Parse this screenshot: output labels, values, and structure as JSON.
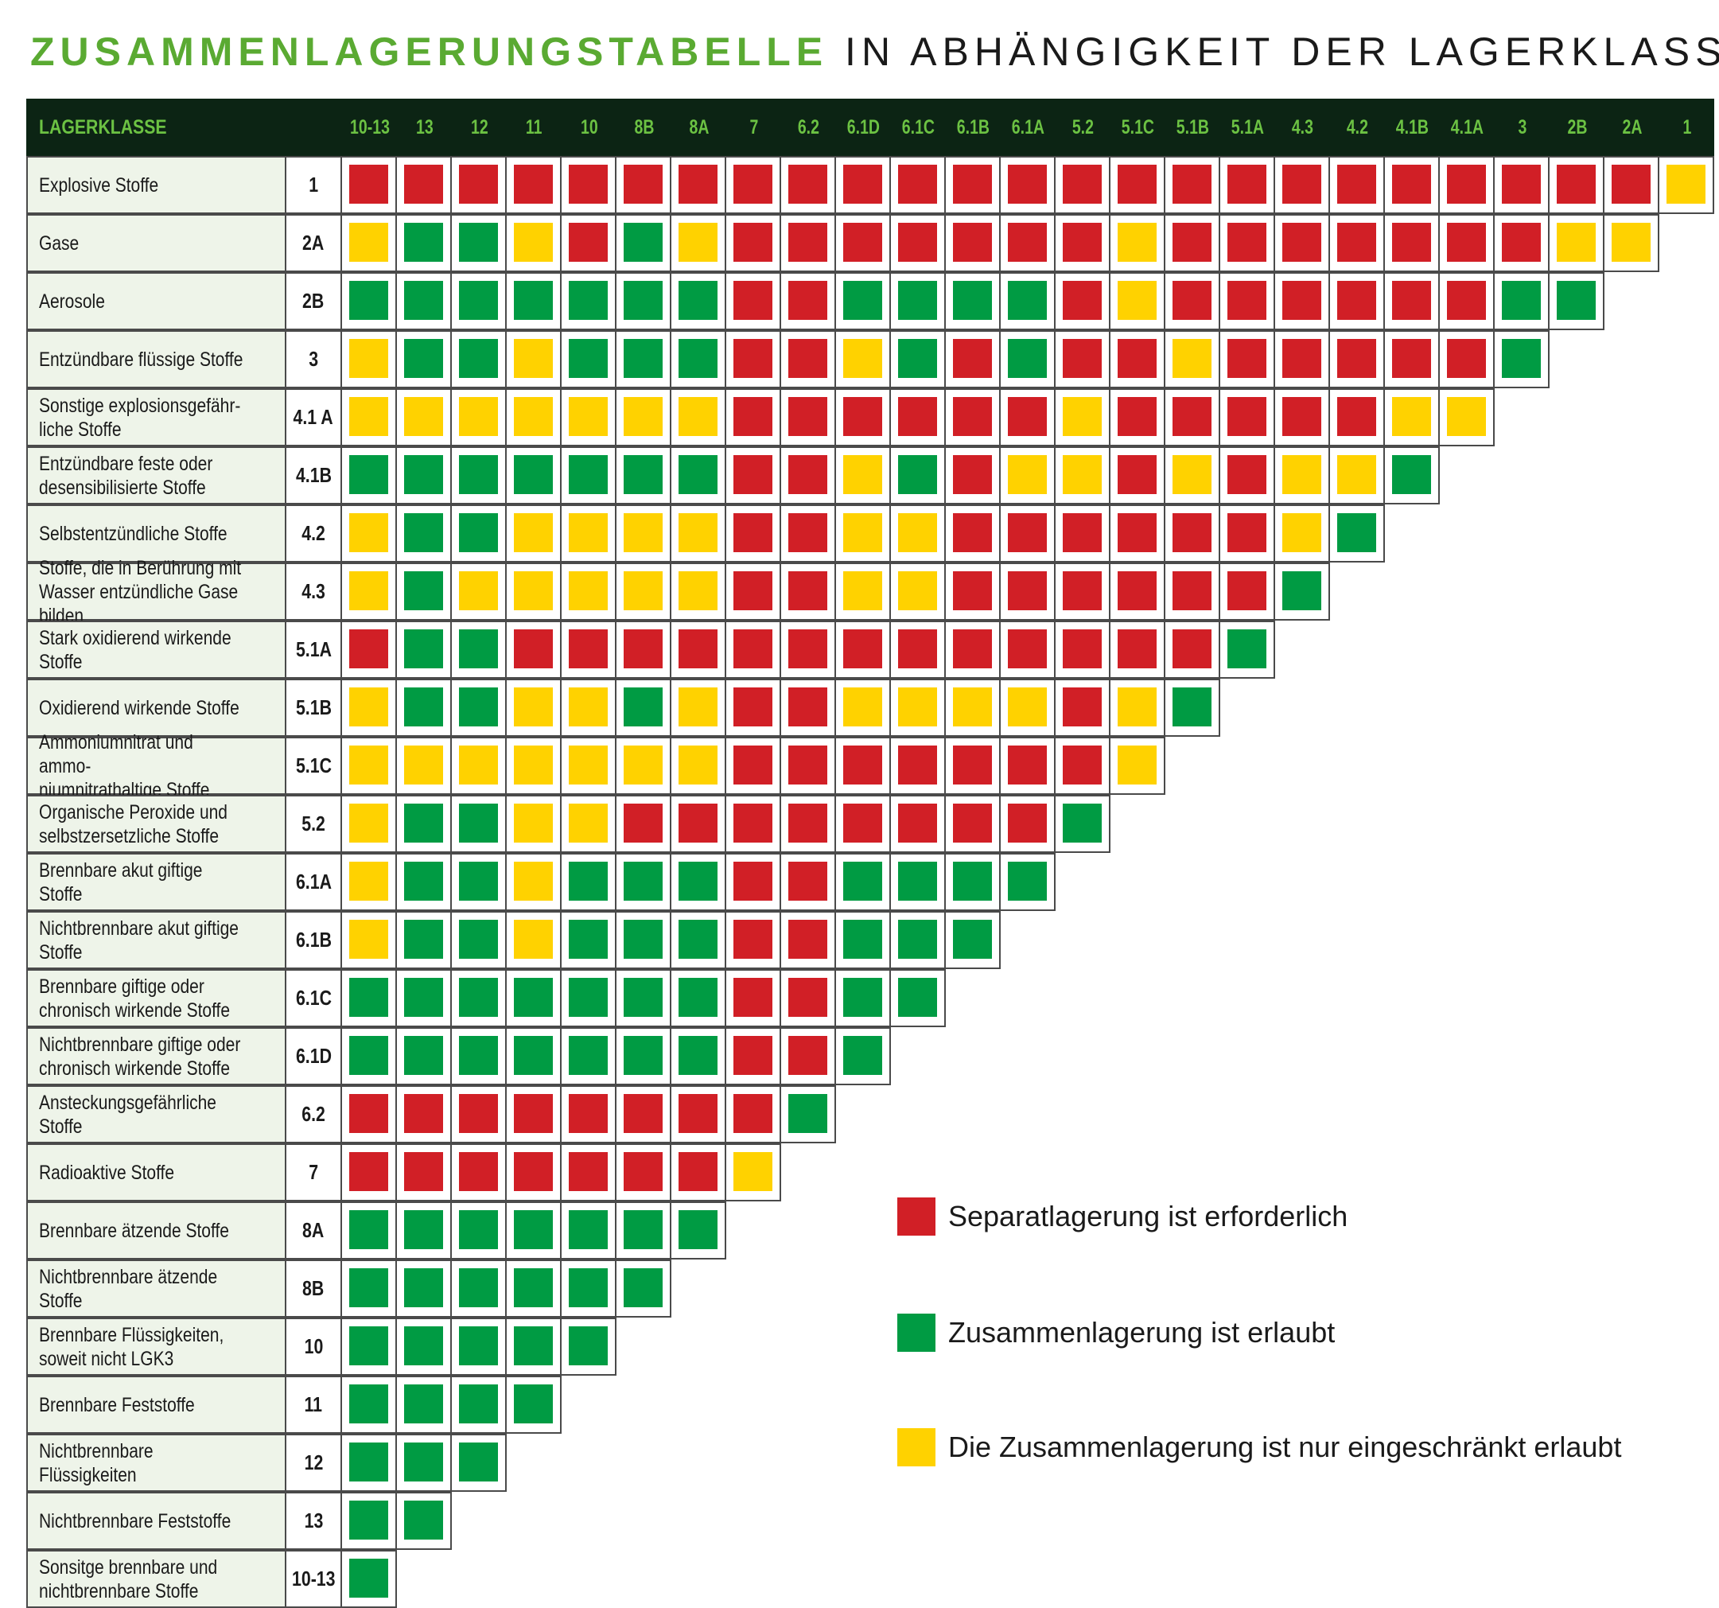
{
  "title": {
    "part1": "ZUSAMMENLAGERUNGSTABELLE",
    "part2": " IN ABHÄNGIGKEIT DER LAGERKLASSE"
  },
  "colors": {
    "R": "#d11f26",
    "G": "#009b43",
    "Y": "#ffd200"
  },
  "table": {
    "header_label": "LAGERKLASSE",
    "columns": [
      "10-13",
      "13",
      "12",
      "11",
      "10",
      "8B",
      "8A",
      "7",
      "6.2",
      "6.1D",
      "6.1C",
      "6.1B",
      "6.1A",
      "5.2",
      "5.1C",
      "5.1B",
      "5.1A",
      "4.3",
      "4.2",
      "4.1B",
      "4.1A",
      "3",
      "2B",
      "2A",
      "1"
    ],
    "rows": [
      {
        "name": "Explosive Stoffe",
        "code": "1",
        "cells": "RRRRRRRRRRRRRRRRRRRRRRRRY"
      },
      {
        "name": "Gase",
        "code": "2A",
        "cells": "YGGYRGYRRRRRRRYRRRRRRRYY"
      },
      {
        "name": "Aerosole",
        "code": "2B",
        "cells": "GGGGGGGRRGGGGRYRRRRRRGG"
      },
      {
        "name": "Entzündbare flüssige Stoffe",
        "code": "3",
        "cells": "YGGYGGGRRYGRGRRYRRRRRG"
      },
      {
        "name": "Sonstige explosionsgefähr-\nliche Stoffe",
        "code": "4.1 A",
        "cells": "YYYYYYYRRRRRRYRRRRRYY"
      },
      {
        "name": "Entzündbare feste oder\ndesensibilisierte Stoffe",
        "code": "4.1B",
        "cells": "GGGGGGGRRYGRYYRYRYYG"
      },
      {
        "name": "Selbstentzündliche Stoffe",
        "code": "4.2",
        "cells": "YGGYYYYRRYYRRRRRRYG"
      },
      {
        "name": "Stoffe, die in Berührung mit\nWasser entzündliche Gase bilden",
        "code": "4.3",
        "cells": "YGYYYYYRRYYRRRRRRG"
      },
      {
        "name": "Stark oxidierend wirkende\nStoffe",
        "code": "5.1A",
        "cells": "RGGRRRRRRRRRRRRRG"
      },
      {
        "name": "Oxidierend wirkende Stoffe",
        "code": "5.1B",
        "cells": "YGGYYGYRRYYYYRYG"
      },
      {
        "name": "Ammoniumnitrat und ammo-\nniumnitrathaltige Stoffe",
        "code": "5.1C",
        "cells": "YYYYYYYRRRRRRRY"
      },
      {
        "name": "Organische Peroxide und\nselbstzersetzliche Stoffe",
        "code": "5.2",
        "cells": "YGGYYRRRRRRRRG"
      },
      {
        "name": "Brennbare akut giftige Stoffe",
        "code": "6.1A",
        "cells": "YGGYGGGRRGGGG"
      },
      {
        "name": "Nichtbrennbare akut giftige\nStoffe",
        "code": "6.1B",
        "cells": "YGGYGGGRRGGG"
      },
      {
        "name": "Brennbare giftige oder\nchronisch wirkende Stoffe",
        "code": "6.1C",
        "cells": "GGGGGGGRRGG"
      },
      {
        "name": "Nichtbrennbare giftige oder\nchronisch wirkende Stoffe",
        "code": "6.1D",
        "cells": "GGGGGGGRRG"
      },
      {
        "name": "Ansteckungsgefährliche\nStoffe",
        "code": "6.2",
        "cells": "RRRRRRRRG"
      },
      {
        "name": "Radioaktive Stoffe",
        "code": "7",
        "cells": "RRRRRRRY"
      },
      {
        "name": "Brennbare ätzende Stoffe",
        "code": "8A",
        "cells": "GGGGGGG"
      },
      {
        "name": "Nichtbrennbare ätzende\nStoffe",
        "code": "8B",
        "cells": "GGGGGG"
      },
      {
        "name": "Brennbare Flüssigkeiten,\nsoweit nicht LGK3",
        "code": "10",
        "cells": "GGGGG"
      },
      {
        "name": "Brennbare Feststoffe",
        "code": "11",
        "cells": "GGGG"
      },
      {
        "name": "Nichtbrennbare Flüssigkeiten",
        "code": "12",
        "cells": "GGG"
      },
      {
        "name": "Nichtbrennbare Feststoffe",
        "code": "13",
        "cells": "GG"
      },
      {
        "name": "Sonsitge brennbare und\nnichtbrennbare Stoffe",
        "code": "10-13",
        "cells": "G"
      }
    ]
  },
  "legend": [
    {
      "color": "R",
      "label": "Separatlagerung ist erforderlich"
    },
    {
      "color": "G",
      "label": "Zusammenlagerung ist erlaubt"
    },
    {
      "color": "Y",
      "label": "Die Zusammenlagerung ist nur eingeschränkt erlaubt"
    }
  ]
}
